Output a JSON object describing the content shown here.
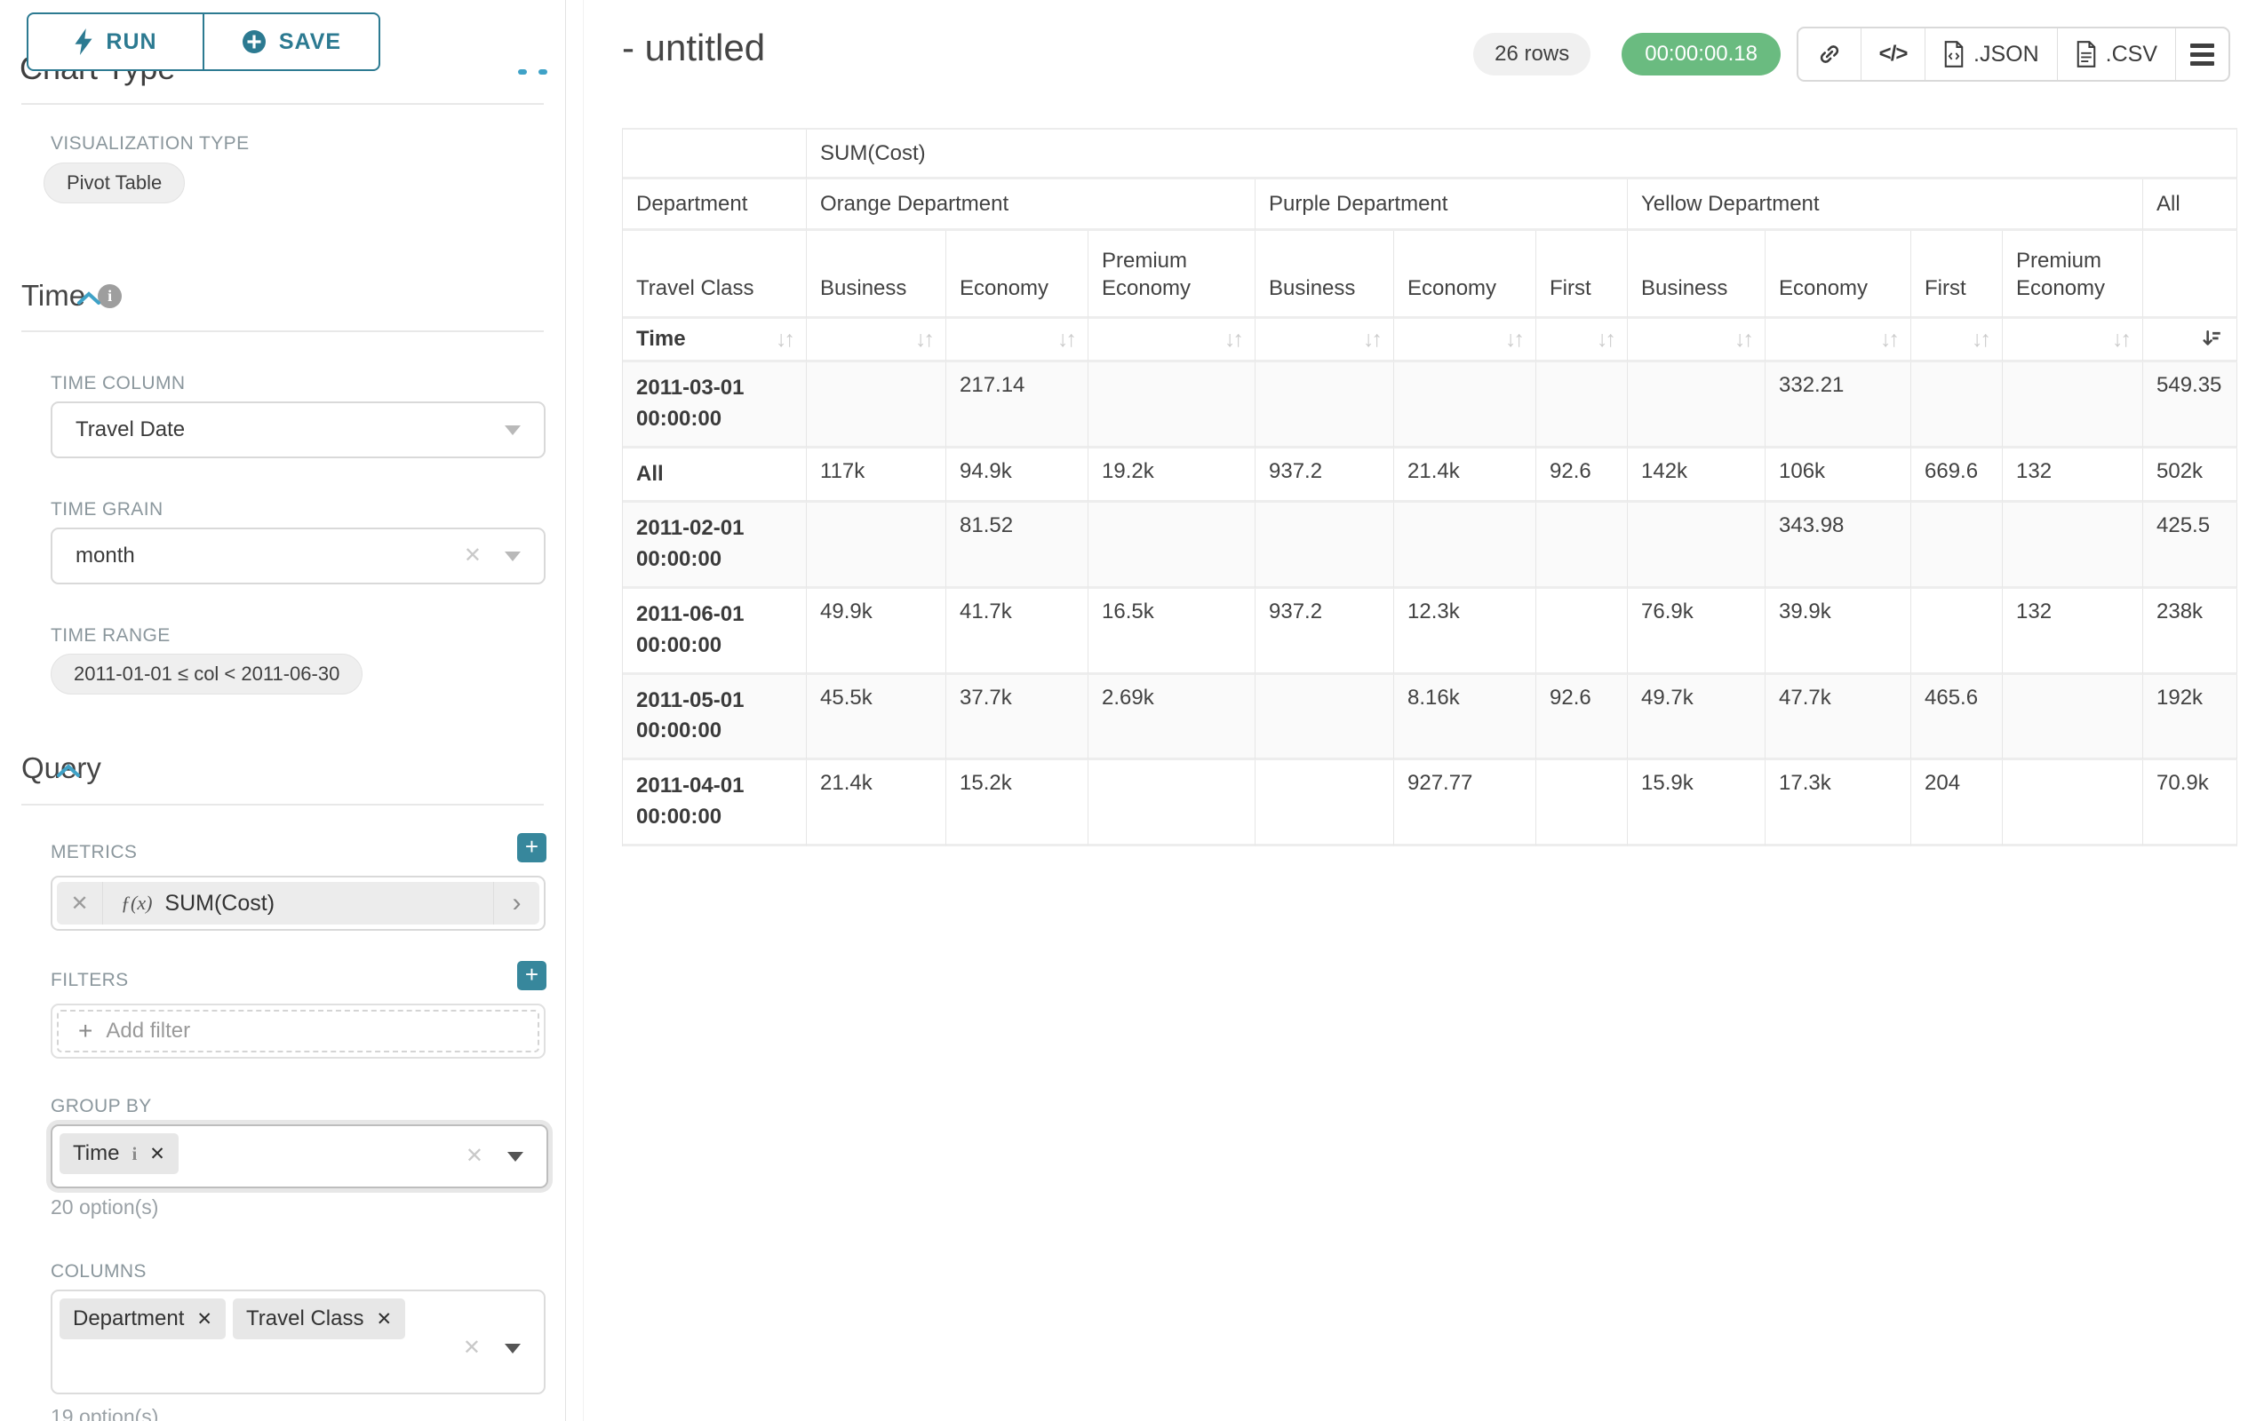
{
  "colors": {
    "teal": "#2c7a91",
    "teal_bright": "#37879c",
    "green": "#6abb80",
    "chevron_blue": "#3fa2c7",
    "label": "#8b979d"
  },
  "sidebar": {
    "run_label": "RUN",
    "save_label": "SAVE",
    "chart_type_heading": "Chart Type",
    "viz": {
      "label": "VISUALIZATION TYPE",
      "value": "Pivot Table"
    },
    "time": {
      "title": "Time",
      "column_label": "TIME COLUMN",
      "column_value": "Travel Date",
      "grain_label": "TIME GRAIN",
      "grain_value": "month",
      "range_label": "TIME RANGE",
      "range_value": "2011-01-01 ≤ col < 2011-06-30"
    },
    "query": {
      "title": "Query",
      "metrics_label": "METRICS",
      "metric": {
        "fx": "ƒ(x)",
        "name": "SUM(Cost)"
      },
      "filters_label": "FILTERS",
      "add_filter": "Add filter",
      "group_by_label": "GROUP BY",
      "group_by": [
        {
          "label": "Time",
          "has_info": true
        }
      ],
      "group_by_options": "20 option(s)",
      "columns_label": "COLUMNS",
      "columns": [
        {
          "label": "Department",
          "has_info": false
        },
        {
          "label": "Travel Class",
          "has_info": false
        }
      ],
      "columns_options": "19 option(s)"
    }
  },
  "header": {
    "title": "- untitled",
    "row_count": "26 rows",
    "duration": "00:00:00.18",
    "code_icon_text": "</>",
    "json_label": ".JSON",
    "csv_label": ".CSV"
  },
  "icons": {
    "sort_inactive": "↓↑",
    "clear_x": "✕",
    "metric_chevron": "›",
    "plus": "+"
  },
  "pivot_table": {
    "metric_header": "SUM(Cost)",
    "col_dim_label": "Department",
    "col_sub_dim_label": "Travel Class",
    "row_dim_label": "Time",
    "col_groups": [
      {
        "label": "Orange Department",
        "children": [
          "Business",
          "Economy",
          "Premium Economy"
        ]
      },
      {
        "label": "Purple Department",
        "children": [
          "Business",
          "Economy",
          "First"
        ]
      },
      {
        "label": "Yellow Department",
        "children": [
          "Business",
          "Economy",
          "First",
          "Premium Economy"
        ]
      },
      {
        "label": "All",
        "children": [
          ""
        ]
      }
    ],
    "sorted_col_index": 10,
    "rows": [
      {
        "label": "2011-03-01 00:00:00",
        "values": [
          "",
          "217.14",
          "",
          "",
          "",
          "",
          "",
          "332.21",
          "",
          "",
          "549.35"
        ]
      },
      {
        "label": "All",
        "values": [
          "117k",
          "94.9k",
          "19.2k",
          "937.2",
          "21.4k",
          "92.6",
          "142k",
          "106k",
          "669.6",
          "132",
          "502k"
        ]
      },
      {
        "label": "2011-02-01 00:00:00",
        "values": [
          "",
          "81.52",
          "",
          "",
          "",
          "",
          "",
          "343.98",
          "",
          "",
          "425.5"
        ]
      },
      {
        "label": "2011-06-01 00:00:00",
        "values": [
          "49.9k",
          "41.7k",
          "16.5k",
          "937.2",
          "12.3k",
          "",
          "76.9k",
          "39.9k",
          "",
          "132",
          "238k"
        ]
      },
      {
        "label": "2011-05-01 00:00:00",
        "values": [
          "45.5k",
          "37.7k",
          "2.69k",
          "",
          "8.16k",
          "92.6",
          "49.7k",
          "47.7k",
          "465.6",
          "",
          "192k"
        ]
      },
      {
        "label": "2011-04-01 00:00:00",
        "values": [
          "21.4k",
          "15.2k",
          "",
          "",
          "927.77",
          "",
          "15.9k",
          "17.3k",
          "204",
          "",
          "70.9k"
        ]
      }
    ]
  }
}
